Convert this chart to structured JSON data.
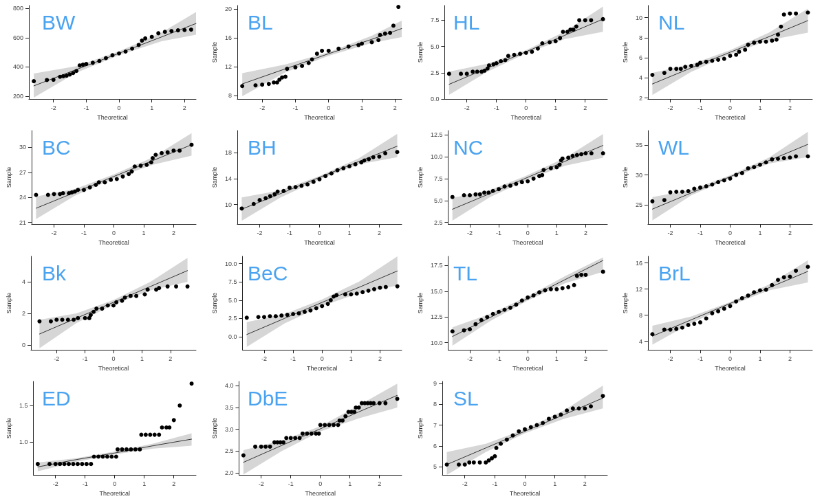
{
  "chart_data": [
    {
      "type": "scatter",
      "title": "BW",
      "xlabel": "Theoretical",
      "xlim": [
        -2.75,
        2.35
      ],
      "ylim": [
        180,
        820
      ],
      "xticks": [
        -2,
        -1,
        0,
        1,
        2
      ],
      "yticks": [
        200,
        400,
        600,
        800
      ],
      "marker": "circle",
      "series": [
        {
          "color": "#000000",
          "x": [
            -2.6,
            -2.2,
            -2.0,
            -1.8,
            -1.7,
            -1.6,
            -1.5,
            -1.4,
            -1.3,
            -1.2,
            -1.1,
            -1,
            -0.8,
            -0.6,
            -0.4,
            -0.2,
            0,
            0.2,
            0.4,
            0.6,
            0.7,
            0.8,
            1.0,
            1.2,
            1.4,
            1.6,
            1.8,
            2.0,
            2.2
          ],
          "values": [
            302,
            310,
            312,
            332,
            336,
            340,
            348,
            358,
            372,
            410,
            415,
            420,
            428,
            440,
            460,
            480,
            492,
            505,
            525,
            550,
            580,
            595,
            605,
            630,
            640,
            645,
            650,
            652,
            655
          ]
        },
        {
          "type": "line",
          "marker": "none",
          "color": "#333333",
          "x": [
            -2.6,
            -1.3,
            0,
            1.3,
            2.35
          ],
          "values": [
            270,
            382,
            493,
            605,
            697
          ],
          "lower": [
            190,
            360,
            480,
            575,
            620
          ],
          "upper": [
            355,
            405,
            506,
            635,
            775
          ]
        }
      ]
    },
    {
      "type": "scatter",
      "title": "BL",
      "xlabel": "Theoretical",
      "ylabel": "Sample",
      "xlim": [
        -2.75,
        2.2
      ],
      "ylim": [
        7.5,
        20.5
      ],
      "xticks": [
        -2,
        -1,
        0,
        1,
        2
      ],
      "yticks": [
        8,
        12,
        16,
        20
      ],
      "marker": "circle",
      "series": [
        {
          "color": "#000000",
          "x": [
            -2.6,
            -2.2,
            -2,
            -1.8,
            -1.65,
            -1.55,
            -1.48,
            -1.4,
            -1.3,
            -1.25,
            -1,
            -0.8,
            -0.6,
            -0.5,
            -0.35,
            -0.2,
            0,
            0.3,
            0.6,
            0.9,
            1.0,
            1.3,
            1.5,
            1.55,
            1.7,
            1.85,
            1.95,
            2.1
          ],
          "values": [
            9.3,
            9.4,
            9.5,
            9.6,
            9.8,
            9.8,
            10.2,
            10.5,
            10.6,
            11.7,
            11.9,
            12.1,
            12.5,
            13,
            13.8,
            14.2,
            14.2,
            14.5,
            14.8,
            15,
            15.2,
            15.4,
            15.7,
            16.4,
            16.6,
            16.7,
            17.7,
            20.3
          ]
        },
        {
          "type": "line",
          "marker": "none",
          "color": "#333333",
          "x": [
            -2.6,
            -1.3,
            0,
            1.3,
            2.2
          ],
          "values": [
            9.6,
            11.7,
            13.8,
            15.8,
            17.3
          ],
          "lower": [
            7.9,
            11.2,
            13.5,
            15.3,
            16.1
          ],
          "upper": [
            11.1,
            12.3,
            14.0,
            16.3,
            18.4
          ]
        }
      ]
    },
    {
      "type": "scatter",
      "title": "HL",
      "xlabel": "Theoretical",
      "ylabel": "Sample",
      "xlim": [
        -2.75,
        2.75
      ],
      "ylim": [
        0,
        8.9
      ],
      "xticks": [
        -2,
        -1,
        0,
        1,
        2
      ],
      "yticks": [
        {
          "value": 0,
          "label": "0.0"
        },
        2.5,
        {
          "value": 5,
          "label": "5.0"
        },
        7.5
      ],
      "marker": "circle",
      "series": [
        {
          "color": "#000000",
          "x": [
            -2.6,
            -2.2,
            -2,
            -1.8,
            -1.65,
            -1.5,
            -1.4,
            -1.3,
            -1.25,
            -1.1,
            -1,
            -0.85,
            -0.7,
            -0.6,
            -0.4,
            -0.2,
            0,
            0.2,
            0.4,
            0.55,
            0.8,
            1.0,
            1.15,
            1.25,
            1.4,
            1.5,
            1.6,
            1.7,
            1.8,
            2.0,
            2.2,
            2.6
          ],
          "values": [
            2.4,
            2.4,
            2.4,
            2.6,
            2.6,
            2.6,
            2.7,
            2.9,
            3.2,
            3.3,
            3.4,
            3.6,
            3.7,
            4.1,
            4.2,
            4.3,
            4.4,
            4.5,
            4.8,
            5.3,
            5.4,
            5.5,
            5.8,
            6.4,
            6.4,
            6.6,
            6.6,
            6.9,
            7.5,
            7.5,
            7.5,
            7.6
          ]
        },
        {
          "type": "line",
          "marker": "none",
          "color": "#333333",
          "x": [
            -2.6,
            -1.3,
            0,
            1.3,
            2.6
          ],
          "values": [
            1.4,
            2.95,
            4.5,
            6.05,
            7.6
          ],
          "lower": [
            0.4,
            2.6,
            4.35,
            5.7,
            6.4
          ],
          "upper": [
            2.6,
            3.35,
            4.65,
            6.4,
            8.8
          ]
        }
      ]
    },
    {
      "type": "scatter",
      "title": "NL",
      "xlabel": "Theoretical",
      "ylabel": "Sample",
      "xlim": [
        -2.75,
        2.75
      ],
      "ylim": [
        1.9,
        11.2
      ],
      "xticks": [
        -2,
        -1,
        0,
        1,
        2
      ],
      "yticks": [
        2,
        4,
        6,
        8,
        10
      ],
      "marker": "circle",
      "series": [
        {
          "color": "#000000",
          "x": [
            -2.6,
            -2.2,
            -2,
            -1.8,
            -1.65,
            -1.5,
            -1.3,
            -1.1,
            -1,
            -0.8,
            -0.6,
            -0.4,
            -0.2,
            0,
            0.2,
            0.3,
            0.5,
            0.6,
            0.8,
            1.0,
            1.2,
            1.4,
            1.55,
            1.6,
            1.7,
            1.8,
            2.0,
            2.2,
            2.6
          ],
          "values": [
            4.3,
            4.5,
            4.9,
            4.9,
            4.9,
            5.1,
            5.2,
            5.3,
            5.5,
            5.6,
            5.7,
            5.8,
            5.9,
            6.2,
            6.3,
            6.6,
            6.8,
            7.3,
            7.5,
            7.6,
            7.6,
            7.7,
            7.8,
            8.3,
            9.1,
            10.3,
            10.4,
            10.4,
            10.5
          ]
        },
        {
          "type": "line",
          "marker": "none",
          "color": "#333333",
          "x": [
            -2.6,
            -1.3,
            0,
            1.3,
            2.6
          ],
          "values": [
            3.4,
            5.0,
            6.55,
            8.1,
            9.7
          ],
          "lower": [
            2.3,
            4.6,
            6.35,
            7.75,
            8.5
          ],
          "upper": [
            4.5,
            5.35,
            6.75,
            8.5,
            10.9
          ]
        }
      ]
    },
    {
      "type": "scatter",
      "title": "BC",
      "xlabel": "Theoretical",
      "ylabel": "Sample",
      "xlim": [
        -2.75,
        2.75
      ],
      "ylim": [
        20.8,
        32
      ],
      "xticks": [
        -2,
        -1,
        0,
        1,
        2
      ],
      "yticks": [
        21,
        24,
        27,
        30
      ],
      "marker": "circle",
      "series": [
        {
          "color": "#000000",
          "x": [
            -2.6,
            -2.2,
            -2,
            -1.8,
            -1.7,
            -1.5,
            -1.4,
            -1.3,
            -1.2,
            -1,
            -0.8,
            -0.6,
            -0.5,
            -0.3,
            -0.1,
            0.1,
            0.3,
            0.5,
            0.6,
            0.7,
            0.9,
            1.1,
            1.25,
            1.3,
            1.4,
            1.6,
            1.8,
            2.0,
            2.2,
            2.6
          ],
          "values": [
            24.3,
            24.3,
            24.4,
            24.4,
            24.5,
            24.5,
            24.6,
            24.7,
            24.9,
            24.9,
            25.2,
            25.5,
            25.8,
            25.8,
            26.1,
            26.2,
            26.5,
            26.8,
            27.1,
            27.7,
            27.8,
            27.9,
            28.2,
            28.7,
            29.1,
            29.3,
            29.4,
            29.6,
            29.6,
            30.3
          ]
        },
        {
          "type": "line",
          "marker": "none",
          "color": "#333333",
          "x": [
            -2.6,
            -1.3,
            0,
            1.3,
            2.6
          ],
          "values": [
            22.7,
            24.6,
            26.5,
            28.4,
            30.3
          ],
          "lower": [
            21.4,
            24.2,
            26.25,
            27.9,
            29.0
          ],
          "upper": [
            24.1,
            25.0,
            26.75,
            28.8,
            31.7
          ]
        }
      ]
    },
    {
      "type": "scatter",
      "title": "BH",
      "xlabel": "Theoretical",
      "ylabel": "Sample",
      "xlim": [
        -2.75,
        2.75
      ],
      "ylim": [
        7,
        21.4
      ],
      "xticks": [
        -2,
        -1,
        0,
        1,
        2
      ],
      "yticks": [
        10,
        14,
        18
      ],
      "marker": "circle",
      "series": [
        {
          "color": "#000000",
          "x": [
            -2.6,
            -2.2,
            -2,
            -1.8,
            -1.65,
            -1.5,
            -1.4,
            -1.2,
            -1.0,
            -0.8,
            -0.6,
            -0.4,
            -0.2,
            0,
            0.2,
            0.4,
            0.6,
            0.8,
            1.0,
            1.2,
            1.4,
            1.5,
            1.65,
            1.8,
            2.0,
            2.2,
            2.6
          ],
          "values": [
            9.4,
            10.1,
            10.7,
            11.0,
            11.3,
            11.6,
            12,
            12.1,
            12.6,
            12.7,
            12.9,
            13.1,
            13.5,
            13.9,
            14.4,
            14.8,
            15.3,
            15.6,
            15.9,
            16.2,
            16.5,
            16.8,
            17,
            17.3,
            17.4,
            17.9,
            18.1
          ]
        },
        {
          "type": "line",
          "marker": "none",
          "color": "#333333",
          "x": [
            -2.6,
            -1.3,
            0,
            1.3,
            2.6
          ],
          "values": [
            9.3,
            11.7,
            14.2,
            16.6,
            19.0
          ],
          "lower": [
            7.5,
            11.1,
            13.9,
            16.2,
            17.3
          ],
          "upper": [
            11.1,
            12.2,
            14.4,
            17.1,
            20.9
          ]
        }
      ]
    },
    {
      "type": "scatter",
      "title": "NC",
      "xlabel": "Theoretical",
      "ylabel": "Sample",
      "xlim": [
        -2.75,
        2.75
      ],
      "ylim": [
        2.3,
        13
      ],
      "xticks": [
        -2,
        -1,
        0,
        1,
        2
      ],
      "yticks": [
        2.5,
        {
          "value": 5,
          "label": "5.0"
        },
        7.5,
        {
          "value": 10,
          "label": "10.0"
        },
        12.5
      ],
      "marker": "circle",
      "series": [
        {
          "color": "#000000",
          "x": [
            -2.6,
            -2.2,
            -2,
            -1.8,
            -1.65,
            -1.5,
            -1.35,
            -1.2,
            -1,
            -0.8,
            -0.6,
            -0.4,
            -0.2,
            0,
            0.2,
            0.4,
            0.5,
            0.55,
            0.8,
            1.0,
            1.1,
            1.15,
            1.2,
            1.4,
            1.55,
            1.7,
            1.85,
            2.0,
            2.2,
            2.6
          ],
          "values": [
            5.4,
            5.6,
            5.6,
            5.7,
            5.7,
            5.9,
            5.9,
            6.1,
            6.3,
            6.6,
            6.7,
            6.9,
            7.1,
            7.2,
            7.5,
            7.8,
            7.9,
            8.5,
            8.7,
            8.8,
            9.1,
            9.6,
            9.8,
            9.9,
            10.1,
            10.2,
            10.3,
            10.4,
            10.4,
            10.4
          ]
        },
        {
          "type": "line",
          "marker": "none",
          "color": "#333333",
          "x": [
            -2.6,
            -1.3,
            0,
            1.3,
            2.6
          ],
          "values": [
            4.0,
            5.8,
            7.65,
            9.5,
            11.3
          ],
          "lower": [
            2.7,
            5.4,
            7.4,
            9.0,
            9.9
          ],
          "upper": [
            5.3,
            6.2,
            7.9,
            9.9,
            12.6
          ]
        }
      ]
    },
    {
      "type": "scatter",
      "title": "WL",
      "xlabel": "Theoretical",
      "ylabel": "Sample",
      "xlim": [
        -2.75,
        2.75
      ],
      "ylim": [
        21.8,
        37.4
      ],
      "xticks": [
        -2,
        -1,
        0,
        1,
        2
      ],
      "yticks": [
        25,
        30,
        35
      ],
      "marker": "circle",
      "series": [
        {
          "color": "#000000",
          "x": [
            -2.6,
            -2.2,
            -2,
            -1.8,
            -1.6,
            -1.4,
            -1.2,
            -1,
            -0.8,
            -0.6,
            -0.4,
            -0.2,
            0,
            0.2,
            0.4,
            0.6,
            0.8,
            1.0,
            1.2,
            1.4,
            1.6,
            1.8,
            2.0,
            2.2,
            2.6
          ],
          "values": [
            25.6,
            25.8,
            27.1,
            27.2,
            27.2,
            27.3,
            27.7,
            27.9,
            28.1,
            28.4,
            28.8,
            29.1,
            29.4,
            30.0,
            30.3,
            31.1,
            31.3,
            31.7,
            32.1,
            32.6,
            32.7,
            32.8,
            32.9,
            33.1,
            33.1
          ]
        },
        {
          "type": "line",
          "marker": "none",
          "color": "#333333",
          "x": [
            -2.6,
            -1.3,
            0,
            1.3,
            2.6
          ],
          "values": [
            24.3,
            27.0,
            29.7,
            32.4,
            35.1
          ],
          "lower": [
            22.4,
            26.6,
            29.45,
            31.9,
            33.0
          ],
          "upper": [
            26.3,
            27.5,
            29.95,
            32.9,
            37.2
          ]
        }
      ]
    },
    {
      "type": "scatter",
      "title": "Bk",
      "xlabel": "Theoretical",
      "ylabel": "Sample",
      "xlim": [
        -2.9,
        2.9
      ],
      "ylim": [
        -0.3,
        5.6
      ],
      "xticks": [
        -2,
        -1,
        0,
        1,
        2
      ],
      "yticks": [
        0,
        2,
        4
      ],
      "marker": "circle",
      "series": [
        {
          "color": "#000000",
          "x": [
            -2.6,
            -2.2,
            -2,
            -1.8,
            -1.6,
            -1.4,
            -1.25,
            -1.0,
            -0.85,
            -0.8,
            -0.7,
            -0.6,
            -0.4,
            -0.2,
            0,
            0.1,
            0.3,
            0.4,
            0.6,
            0.8,
            1.1,
            1.2,
            1.5,
            1.6,
            1.9,
            2.2,
            2.6
          ],
          "values": [
            1.5,
            1.5,
            1.6,
            1.6,
            1.6,
            1.6,
            1.7,
            1.7,
            1.7,
            1.9,
            2.1,
            2.3,
            2.3,
            2.5,
            2.5,
            2.7,
            2.8,
            3.0,
            3.1,
            3.1,
            3.2,
            3.5,
            3.5,
            3.6,
            3.7,
            3.7,
            3.7
          ]
        },
        {
          "type": "line",
          "marker": "none",
          "color": "#333333",
          "x": [
            -2.6,
            -1.3,
            0,
            1.3,
            2.6
          ],
          "values": [
            0.7,
            1.7,
            2.7,
            3.7,
            4.7
          ],
          "lower": [
            -0.2,
            1.4,
            2.55,
            3.45,
            4.0
          ],
          "upper": [
            1.6,
            2.0,
            2.85,
            4.0,
            5.5
          ]
        }
      ]
    },
    {
      "type": "scatter",
      "title": "BeC",
      "xlabel": "Theoretical",
      "ylabel": "Sample",
      "xlim": [
        -2.75,
        2.75
      ],
      "ylim": [
        -1.8,
        11
      ],
      "xticks": [
        -2,
        -1,
        0,
        1,
        2
      ],
      "yticks": [
        {
          "value": 0,
          "label": "0.0"
        },
        2.5,
        {
          "value": 5,
          "label": "5.0"
        },
        7.5,
        {
          "value": 10,
          "label": "10.0"
        }
      ],
      "marker": "circle",
      "series": [
        {
          "color": "#000000",
          "x": [
            -2.6,
            -2.2,
            -2,
            -1.8,
            -1.6,
            -1.4,
            -1.2,
            -1,
            -0.8,
            -0.6,
            -0.4,
            -0.2,
            0,
            0.2,
            0.3,
            0.4,
            0.5,
            0.8,
            1.0,
            1.2,
            1.4,
            1.6,
            1.8,
            2.0,
            2.2,
            2.6
          ],
          "values": [
            2.6,
            2.7,
            2.7,
            2.8,
            2.8,
            2.9,
            3.0,
            3.1,
            3.2,
            3.4,
            3.6,
            3.9,
            4.2,
            4.5,
            5.0,
            5.5,
            5.7,
            5.8,
            5.8,
            5.9,
            6.1,
            6.3,
            6.5,
            6.7,
            6.8,
            6.9
          ]
        },
        {
          "type": "line",
          "marker": "none",
          "color": "#333333",
          "x": [
            -2.6,
            -1.3,
            0,
            1.3,
            2.6
          ],
          "values": [
            0.3,
            2.5,
            4.7,
            6.8,
            9.0
          ],
          "lower": [
            -1.4,
            1.8,
            4.2,
            6.0,
            7.0
          ],
          "upper": [
            2.0,
            3.1,
            5.1,
            7.6,
            11.0
          ]
        }
      ]
    },
    {
      "type": "scatter",
      "title": "TL",
      "xlabel": "Theoretical",
      "ylabel": "Sample",
      "xlim": [
        -2.75,
        2.75
      ],
      "ylim": [
        9.3,
        18.4
      ],
      "xticks": [
        -2,
        -1,
        0,
        1,
        2
      ],
      "yticks": [
        {
          "value": 10,
          "label": "10.0"
        },
        12.5,
        {
          "value": 15,
          "label": "15.0"
        },
        17.5
      ],
      "marker": "circle",
      "series": [
        {
          "color": "#000000",
          "x": [
            -2.6,
            -2.2,
            -2,
            -1.8,
            -1.6,
            -1.4,
            -1.2,
            -1,
            -0.8,
            -0.6,
            -0.4,
            -0.2,
            0,
            0.2,
            0.4,
            0.6,
            0.8,
            1.0,
            1.2,
            1.4,
            1.6,
            1.7,
            1.85,
            2.0,
            2.6
          ],
          "values": [
            11.1,
            11.2,
            11.3,
            11.8,
            12.2,
            12.5,
            12.8,
            13.0,
            13.2,
            13.4,
            13.7,
            14.1,
            14.4,
            14.6,
            14.9,
            15.1,
            15.2,
            15.2,
            15.3,
            15.4,
            15.6,
            16.5,
            16.6,
            16.6,
            16.9
          ]
        },
        {
          "type": "line",
          "marker": "none",
          "color": "#333333",
          "x": [
            -2.6,
            -1.3,
            0,
            1.3,
            2.6
          ],
          "values": [
            10.6,
            12.45,
            14.3,
            16.15,
            18.0
          ],
          "lower": [
            9.7,
            12.1,
            14.1,
            15.8,
            16.9
          ],
          "upper": [
            11.5,
            12.8,
            14.5,
            16.5,
            18.3
          ]
        }
      ]
    },
    {
      "type": "scatter",
      "title": "BrL",
      "xlabel": "Theoretical",
      "ylabel": "Sample",
      "xlim": [
        -2.75,
        2.75
      ],
      "ylim": [
        2.7,
        17
      ],
      "xticks": [
        -2,
        -1,
        0,
        1,
        2
      ],
      "yticks": [
        4,
        8,
        12,
        16
      ],
      "marker": "circle",
      "series": [
        {
          "color": "#000000",
          "x": [
            -2.6,
            -2.2,
            -2,
            -1.8,
            -1.6,
            -1.4,
            -1.2,
            -1,
            -0.8,
            -0.6,
            -0.4,
            -0.2,
            0,
            0.2,
            0.4,
            0.6,
            0.8,
            1.0,
            1.2,
            1.4,
            1.6,
            1.8,
            2.0,
            2.2,
            2.6
          ],
          "values": [
            5.1,
            5.8,
            5.8,
            5.9,
            6.1,
            6.5,
            6.7,
            6.9,
            7.5,
            8.3,
            8.6,
            9.0,
            9.4,
            10.1,
            10.6,
            11.0,
            11.5,
            11.8,
            11.9,
            12.6,
            13.4,
            13.8,
            13.9,
            14.8,
            15.4
          ]
        },
        {
          "type": "line",
          "marker": "none",
          "color": "#333333",
          "x": [
            -2.6,
            -1.3,
            0,
            1.3,
            2.6
          ],
          "values": [
            4.8,
            7.3,
            9.8,
            12.2,
            14.7
          ],
          "lower": [
            3.5,
            6.8,
            9.5,
            11.8,
            13.0
          ],
          "upper": [
            6.4,
            7.8,
            10.0,
            12.7,
            16.4
          ]
        }
      ]
    },
    {
      "type": "scatter",
      "title": "ED",
      "xlabel": "Theoretical",
      "ylabel": "Sample",
      "xlim": [
        -2.75,
        2.75
      ],
      "ylim": [
        0.55,
        1.83
      ],
      "xticks": [
        -2,
        -1,
        0,
        1,
        2
      ],
      "yticks": [
        {
          "value": 1,
          "label": "1.0"
        },
        1.5
      ],
      "marker": "circle",
      "series": [
        {
          "color": "#000000",
          "x": [
            -2.6,
            -2.2,
            -2.0,
            -1.85,
            -1.7,
            -1.55,
            -1.4,
            -1.25,
            -1.1,
            -0.95,
            -0.8,
            -0.7,
            -0.55,
            -0.4,
            -0.25,
            -0.1,
            0.05,
            0.1,
            0.25,
            0.4,
            0.55,
            0.7,
            0.85,
            0.9,
            1.05,
            1.2,
            1.35,
            1.5,
            1.6,
            1.75,
            1.85,
            2.0,
            2.2,
            2.6
          ],
          "values": [
            0.7,
            0.7,
            0.7,
            0.7,
            0.7,
            0.7,
            0.7,
            0.7,
            0.7,
            0.7,
            0.7,
            0.8,
            0.8,
            0.8,
            0.8,
            0.8,
            0.8,
            0.9,
            0.9,
            0.9,
            0.9,
            0.9,
            0.9,
            1.1,
            1.1,
            1.1,
            1.1,
            1.1,
            1.2,
            1.2,
            1.2,
            1.3,
            1.5,
            1.8
          ]
        },
        {
          "type": "line",
          "marker": "none",
          "color": "#333333",
          "x": [
            -2.6,
            -1.3,
            0,
            1.3,
            2.6
          ],
          "values": [
            0.66,
            0.76,
            0.85,
            0.95,
            1.04
          ],
          "lower": [
            0.6,
            0.73,
            0.83,
            0.91,
            0.95
          ],
          "upper": [
            0.72,
            0.78,
            0.87,
            0.98,
            1.12
          ]
        }
      ]
    },
    {
      "type": "scatter",
      "title": "DbE",
      "xlabel": "Theoretical",
      "ylabel": "Sample",
      "xlim": [
        -2.75,
        2.75
      ],
      "ylim": [
        1.95,
        4.1
      ],
      "xticks": [
        -2,
        -1,
        0,
        1,
        2
      ],
      "yticks": [
        {
          "value": 2,
          "label": "2.0"
        },
        2.5,
        {
          "value": 3,
          "label": "3.0"
        },
        3.5,
        {
          "value": 4,
          "label": "4.0"
        }
      ],
      "marker": "circle",
      "series": [
        {
          "color": "#000000",
          "x": [
            -2.6,
            -2.2,
            -2.0,
            -1.85,
            -1.7,
            -1.55,
            -1.45,
            -1.35,
            -1.25,
            -1.15,
            -1.0,
            -0.85,
            -0.7,
            -0.6,
            -0.45,
            -0.3,
            -0.15,
            -0.05,
            0.0,
            0.15,
            0.3,
            0.45,
            0.6,
            0.65,
            0.75,
            0.85,
            0.95,
            1.05,
            1.15,
            1.2,
            1.3,
            1.4,
            1.5,
            1.6,
            1.7,
            1.8,
            2.0,
            2.2,
            2.6
          ],
          "values": [
            2.4,
            2.6,
            2.6,
            2.6,
            2.6,
            2.7,
            2.7,
            2.7,
            2.7,
            2.8,
            2.8,
            2.8,
            2.8,
            2.9,
            2.9,
            2.9,
            2.9,
            2.9,
            3.1,
            3.1,
            3.1,
            3.1,
            3.1,
            3.2,
            3.2,
            3.3,
            3.4,
            3.4,
            3.4,
            3.5,
            3.5,
            3.6,
            3.6,
            3.6,
            3.6,
            3.6,
            3.6,
            3.6,
            3.7
          ]
        },
        {
          "type": "line",
          "marker": "none",
          "color": "#333333",
          "x": [
            -2.6,
            -1.3,
            0,
            1.3,
            2.6
          ],
          "values": [
            2.24,
            2.63,
            3.01,
            3.4,
            3.78
          ],
          "lower": [
            1.96,
            2.5,
            2.95,
            3.25,
            3.5
          ],
          "upper": [
            2.52,
            2.74,
            3.07,
            3.55,
            4.05
          ]
        }
      ]
    },
    {
      "type": "scatter",
      "title": "SL",
      "xlabel": "Theoretical",
      "ylabel": "Sample",
      "xlim": [
        -2.75,
        2.75
      ],
      "ylim": [
        4.6,
        9.1
      ],
      "xticks": [
        -2,
        -1,
        0,
        1,
        2
      ],
      "yticks": [
        5,
        6,
        7,
        8,
        9
      ],
      "marker": "circle",
      "series": [
        {
          "color": "#000000",
          "x": [
            -2.6,
            -2.2,
            -2,
            -1.85,
            -1.7,
            -1.5,
            -1.3,
            -1.2,
            -1.1,
            -1.0,
            -0.95,
            -0.8,
            -0.6,
            -0.4,
            -0.2,
            0,
            0.2,
            0.4,
            0.6,
            0.8,
            1.0,
            1.2,
            1.4,
            1.6,
            1.8,
            2.0,
            2.2,
            2.6
          ],
          "values": [
            5.1,
            5.1,
            5.1,
            5.2,
            5.2,
            5.2,
            5.2,
            5.3,
            5.4,
            5.5,
            5.9,
            6.1,
            6.3,
            6.5,
            6.7,
            6.8,
            6.9,
            7.0,
            7.1,
            7.3,
            7.4,
            7.5,
            7.7,
            7.8,
            7.8,
            7.8,
            7.9,
            8.4
          ]
        },
        {
          "type": "line",
          "marker": "none",
          "color": "#333333",
          "x": [
            -2.6,
            -1.3,
            0,
            1.3,
            2.6
          ],
          "values": [
            5.1,
            5.9,
            6.7,
            7.5,
            8.3
          ],
          "lower": [
            4.6,
            5.7,
            6.6,
            7.3,
            7.8
          ],
          "upper": [
            5.7,
            6.1,
            6.8,
            7.7,
            8.9
          ]
        }
      ]
    }
  ]
}
